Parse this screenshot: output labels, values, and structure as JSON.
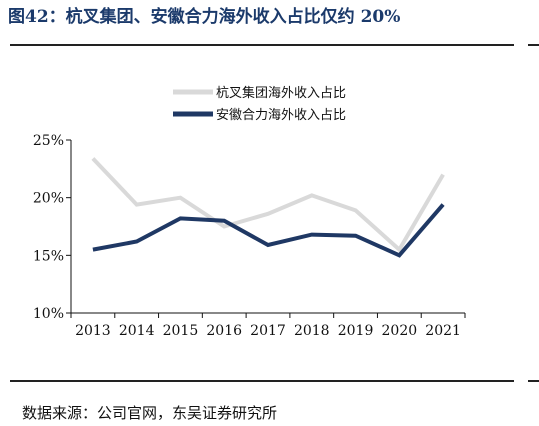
{
  "figure": {
    "title": "图42：杭叉集团、安徽合力海外收入占比仅约 20%",
    "source": "数据来源：公司官网，东吴证券研究所"
  },
  "colors": {
    "title": "#1b3a6b",
    "series_1": "#d9d9d9",
    "series_2": "#1f3864",
    "axis": "#111111"
  },
  "chart_data": {
    "type": "line",
    "title": "",
    "xlabel": "",
    "ylabel": "",
    "x": [
      "2013",
      "2014",
      "2015",
      "2016",
      "2017",
      "2018",
      "2019",
      "2020",
      "2021"
    ],
    "series": [
      {
        "name": "杭叉集团海外收入占比",
        "values": [
          23.4,
          19.4,
          20.0,
          17.5,
          18.6,
          20.2,
          18.9,
          15.5,
          22.0
        ],
        "color": "#d9d9d9"
      },
      {
        "name": "安徽合力海外收入占比",
        "values": [
          15.5,
          16.2,
          18.2,
          18.0,
          15.9,
          16.8,
          16.7,
          15.0,
          19.4
        ],
        "color": "#1f3864"
      }
    ],
    "ylim": [
      10,
      25
    ],
    "yticks": [
      "10%",
      "15%",
      "20%",
      "25%"
    ],
    "grid": false,
    "legend": "top-center"
  }
}
